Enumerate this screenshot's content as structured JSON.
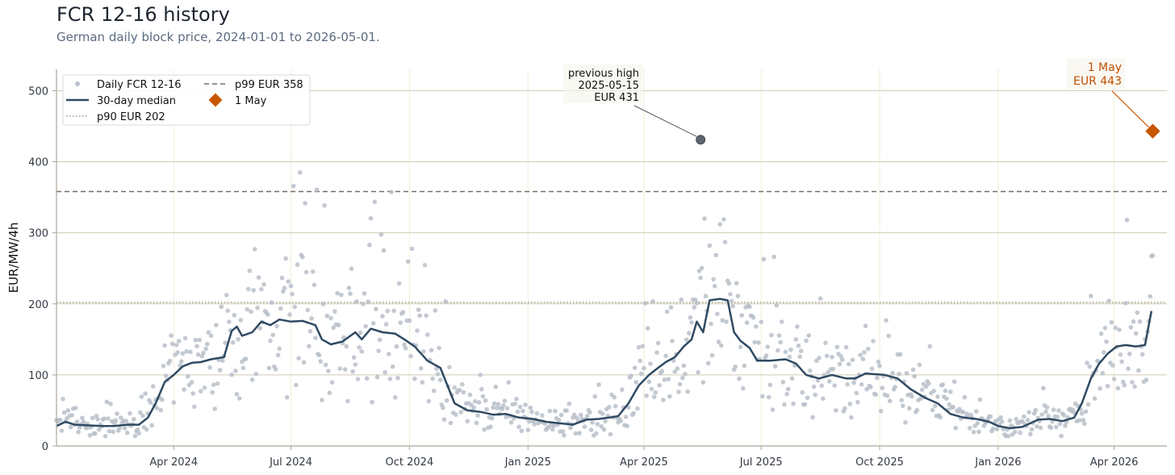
{
  "colors": {
    "points": "#b8bfc9",
    "median": "#2f4a63",
    "p90": "#a09a80",
    "p99": "#7a6a62",
    "marker_may": "#c85500",
    "marker_prev": "#5e6370",
    "grid_h": "#cfcab3",
    "grid_v": "#efefd8",
    "axis": "#aaa799"
  },
  "chart_data": {
    "type": "scatter",
    "title": "FCR 12-16 history",
    "subtitle": "German daily block price, 2024-01-01 to 2026-05-01.",
    "xlabel": "",
    "ylabel": "EUR/MW/4h",
    "xlim": [
      "2024-01-01",
      "2026-05-12"
    ],
    "ylim": [
      0,
      530
    ],
    "grid": true,
    "legend_position": "top-left",
    "x_ticks": [
      {
        "date": "2024-04-01",
        "label": "Apr 2024"
      },
      {
        "date": "2024-07-01",
        "label": "Jul 2024"
      },
      {
        "date": "2024-10-01",
        "label": "Oct 2024"
      },
      {
        "date": "2025-01-01",
        "label": "Jan 2025"
      },
      {
        "date": "2025-04-01",
        "label": "Apr 2025"
      },
      {
        "date": "2025-07-01",
        "label": "Jul 2025"
      },
      {
        "date": "2025-10-01",
        "label": "Oct 2025"
      },
      {
        "date": "2026-01-01",
        "label": "Jan 2026"
      },
      {
        "date": "2026-04-01",
        "label": "Apr 2026"
      }
    ],
    "y_ticks": [
      0,
      100,
      200,
      300,
      400,
      500
    ],
    "legend": [
      {
        "key": "daily",
        "label": "Daily FCR 12-16"
      },
      {
        "key": "median",
        "label": "30-day median"
      },
      {
        "key": "p90",
        "label": "p90 EUR 202"
      },
      {
        "key": "p99",
        "label": "p99 EUR 358"
      },
      {
        "key": "may",
        "label": "1 May"
      }
    ],
    "reference_lines": [
      {
        "key": "p90",
        "name": "p90 EUR 202",
        "value": 202,
        "style": "dotted"
      },
      {
        "key": "p99",
        "name": "p99 EUR 358",
        "value": 358,
        "style": "dashed"
      }
    ],
    "highlights": [
      {
        "key": "prev",
        "date": "2025-05-15",
        "value": 431,
        "lines": [
          "previous high",
          "2025-05-15",
          "EUR 431"
        ]
      },
      {
        "key": "may",
        "date": "2026-05-01",
        "value": 443,
        "lines": [
          "1 May",
          "EUR 443"
        ]
      }
    ],
    "series": [
      {
        "name": "30-day median",
        "type": "line",
        "points": [
          [
            "2024-01-01",
            28
          ],
          [
            "2024-01-08",
            34
          ],
          [
            "2024-01-15",
            30
          ],
          [
            "2024-01-25",
            29
          ],
          [
            "2024-02-05",
            28
          ],
          [
            "2024-02-15",
            28
          ],
          [
            "2024-02-25",
            30
          ],
          [
            "2024-03-05",
            30
          ],
          [
            "2024-03-12",
            40
          ],
          [
            "2024-03-18",
            60
          ],
          [
            "2024-03-25",
            90
          ],
          [
            "2024-04-01",
            100
          ],
          [
            "2024-04-08",
            112
          ],
          [
            "2024-04-15",
            117
          ],
          [
            "2024-04-22",
            118
          ],
          [
            "2024-04-30",
            122
          ],
          [
            "2024-05-10",
            125
          ],
          [
            "2024-05-16",
            162
          ],
          [
            "2024-05-20",
            168
          ],
          [
            "2024-05-24",
            155
          ],
          [
            "2024-06-01",
            160
          ],
          [
            "2024-06-08",
            175
          ],
          [
            "2024-06-15",
            170
          ],
          [
            "2024-06-22",
            178
          ],
          [
            "2024-07-01",
            175
          ],
          [
            "2024-07-10",
            176
          ],
          [
            "2024-07-20",
            170
          ],
          [
            "2024-07-25",
            150
          ],
          [
            "2024-08-01",
            143
          ],
          [
            "2024-08-10",
            147
          ],
          [
            "2024-08-20",
            160
          ],
          [
            "2024-08-25",
            150
          ],
          [
            "2024-09-01",
            165
          ],
          [
            "2024-09-10",
            160
          ],
          [
            "2024-09-20",
            158
          ],
          [
            "2024-09-27",
            150
          ],
          [
            "2024-10-05",
            140
          ],
          [
            "2024-10-15",
            120
          ],
          [
            "2024-10-25",
            110
          ],
          [
            "2024-11-05",
            60
          ],
          [
            "2024-11-15",
            50
          ],
          [
            "2024-11-25",
            48
          ],
          [
            "2024-12-05",
            44
          ],
          [
            "2024-12-15",
            45
          ],
          [
            "2024-12-25",
            40
          ],
          [
            "2025-01-05",
            38
          ],
          [
            "2025-01-15",
            34
          ],
          [
            "2025-01-25",
            32
          ],
          [
            "2025-02-05",
            30
          ],
          [
            "2025-02-15",
            37
          ],
          [
            "2025-02-25",
            38
          ],
          [
            "2025-03-05",
            40
          ],
          [
            "2025-03-12",
            42
          ],
          [
            "2025-03-20",
            60
          ],
          [
            "2025-03-28",
            85
          ],
          [
            "2025-04-05",
            100
          ],
          [
            "2025-04-12",
            110
          ],
          [
            "2025-04-18",
            118
          ],
          [
            "2025-04-25",
            125
          ],
          [
            "2025-05-02",
            140
          ],
          [
            "2025-05-08",
            150
          ],
          [
            "2025-05-12",
            175
          ],
          [
            "2025-05-17",
            160
          ],
          [
            "2025-05-22",
            205
          ],
          [
            "2025-05-30",
            207
          ],
          [
            "2025-06-05",
            205
          ],
          [
            "2025-06-10",
            160
          ],
          [
            "2025-06-15",
            148
          ],
          [
            "2025-06-22",
            138
          ],
          [
            "2025-06-28",
            120
          ],
          [
            "2025-07-08",
            120
          ],
          [
            "2025-07-20",
            122
          ],
          [
            "2025-07-28",
            116
          ],
          [
            "2025-08-05",
            100
          ],
          [
            "2025-08-15",
            95
          ],
          [
            "2025-08-25",
            100
          ],
          [
            "2025-09-05",
            95
          ],
          [
            "2025-09-12",
            95
          ],
          [
            "2025-09-20",
            102
          ],
          [
            "2025-10-05",
            100
          ],
          [
            "2025-10-15",
            95
          ],
          [
            "2025-10-25",
            80
          ],
          [
            "2025-11-05",
            68
          ],
          [
            "2025-11-15",
            60
          ],
          [
            "2025-11-25",
            45
          ],
          [
            "2025-12-05",
            40
          ],
          [
            "2025-12-15",
            38
          ],
          [
            "2025-12-25",
            34
          ],
          [
            "2026-01-01",
            28
          ],
          [
            "2026-01-10",
            25
          ],
          [
            "2026-01-20",
            27
          ],
          [
            "2026-02-01",
            37
          ],
          [
            "2026-02-10",
            38
          ],
          [
            "2026-02-20",
            35
          ],
          [
            "2026-03-01",
            40
          ],
          [
            "2026-03-07",
            60
          ],
          [
            "2026-03-14",
            95
          ],
          [
            "2026-03-20",
            115
          ],
          [
            "2026-03-27",
            130
          ],
          [
            "2026-04-03",
            140
          ],
          [
            "2026-04-10",
            142
          ],
          [
            "2026-04-18",
            140
          ],
          [
            "2026-04-25",
            142
          ],
          [
            "2026-04-30",
            190
          ]
        ]
      }
    ]
  }
}
